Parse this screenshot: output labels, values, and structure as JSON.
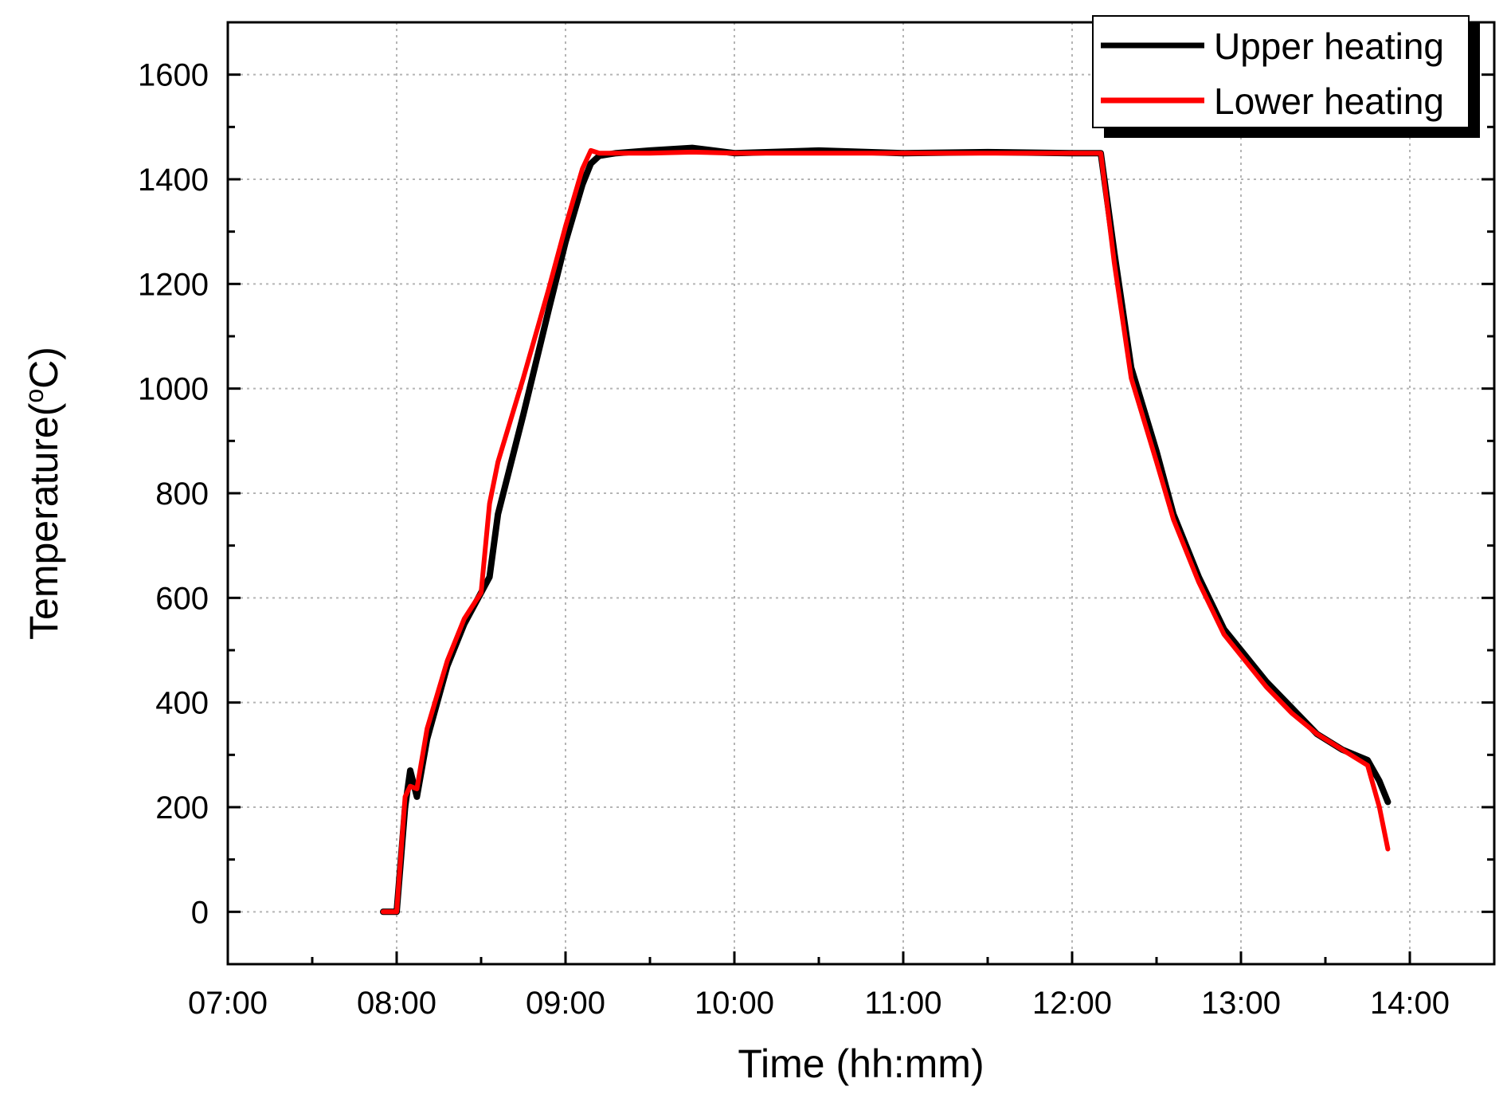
{
  "chart_data": {
    "type": "line",
    "xlabel": "Time (hh:mm)",
    "ylabel_main": "Temperature(",
    "ylabel_sup": "o",
    "ylabel_tail": "C)",
    "xlim": [
      7.0,
      14.5
    ],
    "ylim": [
      -100,
      1700
    ],
    "x_ticks": [
      {
        "value": 7,
        "label": "07:00"
      },
      {
        "value": 8,
        "label": "08:00"
      },
      {
        "value": 9,
        "label": "09:00"
      },
      {
        "value": 10,
        "label": "10:00"
      },
      {
        "value": 11,
        "label": "11:00"
      },
      {
        "value": 12,
        "label": "12:00"
      },
      {
        "value": 13,
        "label": "13:00"
      },
      {
        "value": 14,
        "label": "14:00"
      }
    ],
    "y_ticks": [
      {
        "value": 0,
        "label": "0"
      },
      {
        "value": 200,
        "label": "200"
      },
      {
        "value": 400,
        "label": "400"
      },
      {
        "value": 600,
        "label": "600"
      },
      {
        "value": 800,
        "label": "800"
      },
      {
        "value": 1000,
        "label": "1000"
      },
      {
        "value": 1200,
        "label": "1200"
      },
      {
        "value": 1400,
        "label": "1400"
      },
      {
        "value": 1600,
        "label": "1600"
      }
    ],
    "grid": true,
    "legend_position": "top-right",
    "series": [
      {
        "name": "Upper heating",
        "color": "#000000",
        "x": [
          7.92,
          8.0,
          8.05,
          8.08,
          8.12,
          8.18,
          8.3,
          8.4,
          8.5,
          8.55,
          8.6,
          8.75,
          8.9,
          9.0,
          9.1,
          9.15,
          9.2,
          9.3,
          9.5,
          9.75,
          10.0,
          10.5,
          11.0,
          11.5,
          12.0,
          12.1,
          12.17,
          12.25,
          12.35,
          12.5,
          12.6,
          12.75,
          12.9,
          13.0,
          13.15,
          13.3,
          13.45,
          13.6,
          13.75,
          13.82,
          13.87
        ],
        "y": [
          0,
          0,
          200,
          270,
          220,
          330,
          470,
          550,
          610,
          640,
          760,
          950,
          1150,
          1280,
          1390,
          1430,
          1445,
          1450,
          1455,
          1460,
          1450,
          1455,
          1450,
          1452,
          1450,
          1450,
          1450,
          1260,
          1040,
          880,
          760,
          640,
          540,
          500,
          440,
          390,
          340,
          310,
          290,
          250,
          210
        ]
      },
      {
        "name": "Lower heating",
        "color": "#ff0000",
        "x": [
          7.92,
          8.0,
          8.05,
          8.08,
          8.12,
          8.18,
          8.3,
          8.4,
          8.5,
          8.55,
          8.6,
          8.75,
          8.9,
          9.0,
          9.1,
          9.15,
          9.2,
          9.3,
          9.5,
          9.75,
          10.0,
          10.5,
          11.0,
          11.5,
          12.0,
          12.1,
          12.17,
          12.25,
          12.35,
          12.5,
          12.6,
          12.75,
          12.9,
          13.0,
          13.15,
          13.3,
          13.45,
          13.6,
          13.75,
          13.82,
          13.87
        ],
        "y": [
          0,
          0,
          220,
          240,
          235,
          350,
          480,
          560,
          610,
          780,
          860,
          1020,
          1190,
          1310,
          1420,
          1455,
          1450,
          1450,
          1450,
          1452,
          1450,
          1450,
          1450,
          1450,
          1450,
          1450,
          1450,
          1240,
          1020,
          860,
          750,
          630,
          530,
          490,
          430,
          380,
          340,
          310,
          280,
          200,
          120
        ]
      }
    ]
  }
}
